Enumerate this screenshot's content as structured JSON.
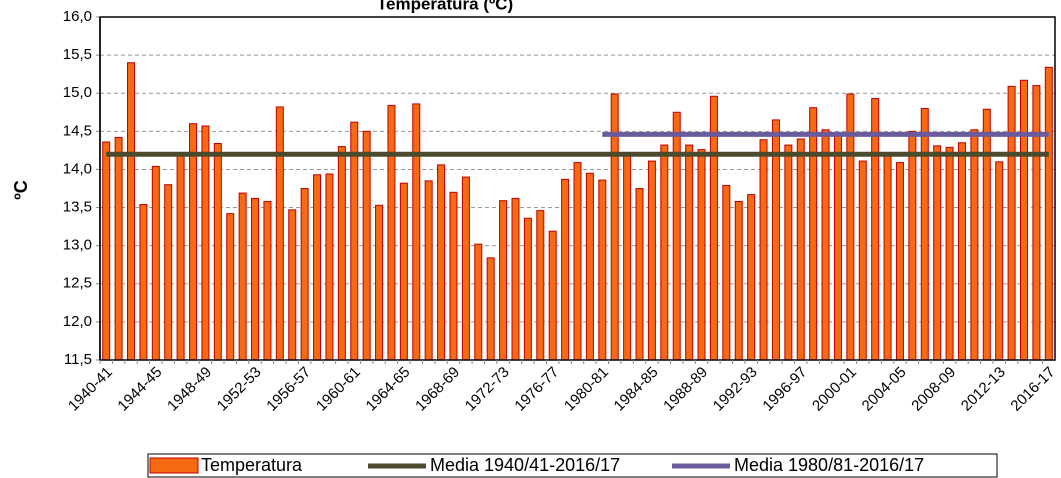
{
  "chart_data": {
    "type": "bar",
    "title": "Temperatura (ºC)",
    "y_label": "ºC",
    "categories": [
      "1940-41",
      null,
      null,
      null,
      "1944-45",
      null,
      null,
      null,
      "1948-49",
      null,
      null,
      null,
      "1952-53",
      null,
      null,
      null,
      "1956-57",
      null,
      null,
      null,
      "1960-61",
      null,
      null,
      null,
      "1964-65",
      null,
      null,
      null,
      "1968-69",
      null,
      null,
      null,
      "1972-73",
      null,
      null,
      null,
      "1976-77",
      null,
      null,
      null,
      "1980-81",
      null,
      null,
      null,
      "1984-85",
      null,
      null,
      null,
      "1988-89",
      null,
      null,
      null,
      "1992-93",
      null,
      null,
      null,
      "1996-97",
      null,
      null,
      null,
      "2000-01",
      null,
      null,
      null,
      "2004-05",
      null,
      null,
      null,
      "2008-09",
      null,
      null,
      null,
      "2012-13",
      null,
      null,
      null,
      "2016-17"
    ],
    "series": [
      {
        "name": "Temperatura",
        "color": "#f56a12",
        "border": "#c00000",
        "values": [
          14.36,
          14.42,
          15.4,
          13.54,
          14.04,
          13.8,
          14.18,
          14.6,
          14.57,
          14.34,
          13.42,
          13.69,
          13.62,
          13.58,
          14.82,
          13.47,
          13.75,
          13.93,
          13.94,
          14.3,
          14.62,
          14.5,
          13.53,
          14.84,
          13.82,
          14.86,
          13.85,
          14.06,
          13.7,
          13.9,
          13.02,
          12.84,
          13.59,
          13.62,
          13.36,
          13.46,
          13.19,
          13.87,
          14.09,
          13.95,
          13.86,
          14.99,
          14.2,
          13.75,
          14.11,
          14.32,
          14.75,
          14.32,
          14.26,
          14.96,
          13.79,
          13.58,
          13.67,
          14.39,
          14.65,
          14.32,
          14.4,
          14.81,
          14.52,
          14.48,
          14.99,
          14.11,
          14.93,
          14.2,
          14.09,
          14.5,
          14.8,
          14.31,
          14.29,
          14.35,
          14.52,
          14.79,
          14.1,
          15.09,
          15.17,
          15.1,
          15.34
        ]
      },
      {
        "name": "Media 1940/41-2016/17",
        "type": "line",
        "color": "#4b4a2c",
        "values": [
          14.2,
          14.2,
          14.2,
          14.2,
          14.2,
          14.2,
          14.2,
          14.2,
          14.2,
          14.2,
          14.2,
          14.2,
          14.2,
          14.2,
          14.2,
          14.2,
          14.2,
          14.2,
          14.2,
          14.2,
          14.2,
          14.2,
          14.2,
          14.2,
          14.2,
          14.2,
          14.2,
          14.2,
          14.2,
          14.2,
          14.2,
          14.2,
          14.2,
          14.2,
          14.2,
          14.2,
          14.2,
          14.2,
          14.2,
          14.2,
          14.2,
          14.2,
          14.2,
          14.2,
          14.2,
          14.2,
          14.2,
          14.2,
          14.2,
          14.2,
          14.2,
          14.2,
          14.2,
          14.2,
          14.2,
          14.2,
          14.2,
          14.2,
          14.2,
          14.2,
          14.2,
          14.2,
          14.2,
          14.2,
          14.2,
          14.2,
          14.2,
          14.2,
          14.2,
          14.2,
          14.2,
          14.2,
          14.2,
          14.2,
          14.2,
          14.2,
          14.2
        ]
      },
      {
        "name": "Media 1980/81-2016/17",
        "type": "line",
        "color": "#6a5b9c",
        "values": [
          null,
          null,
          null,
          null,
          null,
          null,
          null,
          null,
          null,
          null,
          null,
          null,
          null,
          null,
          null,
          null,
          null,
          null,
          null,
          null,
          null,
          null,
          null,
          null,
          null,
          null,
          null,
          null,
          null,
          null,
          null,
          null,
          null,
          null,
          null,
          null,
          null,
          null,
          null,
          null,
          14.46,
          14.46,
          14.46,
          14.46,
          14.46,
          14.46,
          14.46,
          14.46,
          14.46,
          14.46,
          14.46,
          14.46,
          14.46,
          14.46,
          14.46,
          14.46,
          14.46,
          14.46,
          14.46,
          14.46,
          14.46,
          14.46,
          14.46,
          14.46,
          14.46,
          14.46,
          14.46,
          14.46,
          14.46,
          14.46,
          14.46,
          14.46,
          14.46,
          14.46,
          14.46,
          14.46,
          14.46
        ]
      }
    ],
    "ylim": [
      11.5,
      16.0
    ],
    "yticks": [
      {
        "value": 11.5,
        "label": "11,5"
      },
      {
        "value": 12.0,
        "label": "12,0"
      },
      {
        "value": 12.5,
        "label": "12,5"
      },
      {
        "value": 13.0,
        "label": "13,0"
      },
      {
        "value": 13.5,
        "label": "13,5"
      },
      {
        "value": 14.0,
        "label": "14,0"
      },
      {
        "value": 14.5,
        "label": "14,5"
      },
      {
        "value": 15.0,
        "label": "15,0"
      },
      {
        "value": 15.5,
        "label": "15,5"
      },
      {
        "value": 16.0,
        "label": "16,0"
      }
    ],
    "grid": true,
    "legend": "bottom"
  }
}
